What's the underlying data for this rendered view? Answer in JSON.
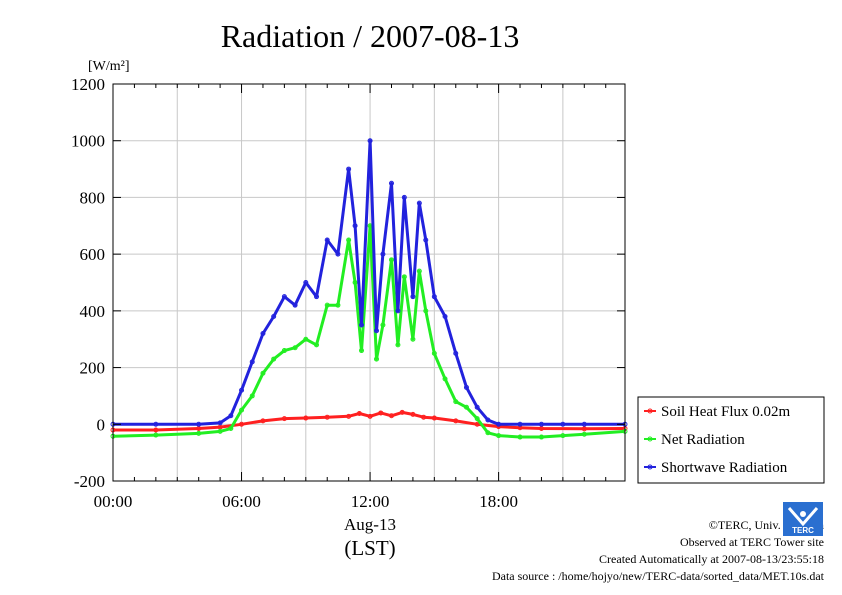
{
  "chart_data": {
    "type": "line",
    "title": "Radiation / 2007-08-13",
    "ylabel": "[W/m²]",
    "ylim": [
      -200,
      1200
    ],
    "yticks": [
      -200,
      0,
      200,
      400,
      600,
      800,
      1000,
      1200
    ],
    "xlim": [
      0,
      23.9
    ],
    "xticks": [
      {
        "value": 0,
        "label": "00:00"
      },
      {
        "value": 6,
        "label": "06:00"
      },
      {
        "value": 12,
        "label": "12:00"
      },
      {
        "value": 18,
        "label": "18:00"
      }
    ],
    "date_label": "Aug-13",
    "timezone_label": "(LST)",
    "grid": true,
    "legend_position": "right",
    "series": [
      {
        "name": "Soil Heat Flux 0.02m",
        "color": "#ff2020",
        "x": [
          0,
          2,
          4,
          5,
          6,
          7,
          8,
          9,
          10,
          11,
          11.5,
          12,
          12.5,
          13,
          13.5,
          14,
          14.5,
          15,
          16,
          17,
          18,
          19,
          20,
          22,
          23.9
        ],
        "values": [
          -20,
          -20,
          -15,
          -10,
          0,
          12,
          20,
          22,
          25,
          28,
          38,
          28,
          40,
          30,
          42,
          35,
          25,
          22,
          12,
          0,
          -8,
          -12,
          -15,
          -16,
          -15
        ]
      },
      {
        "name": "Net Radiation",
        "color": "#22ee22",
        "x": [
          0,
          2,
          4,
          5,
          5.5,
          6,
          6.5,
          7,
          7.5,
          8,
          8.5,
          9,
          9.5,
          10,
          10.5,
          11,
          11.3,
          11.6,
          12,
          12.3,
          12.6,
          13,
          13.3,
          13.6,
          14,
          14.3,
          14.6,
          15,
          15.5,
          16,
          16.5,
          17,
          17.5,
          18,
          19,
          20,
          21,
          22,
          23.9
        ],
        "values": [
          -42,
          -38,
          -32,
          -25,
          -15,
          50,
          100,
          180,
          230,
          260,
          270,
          300,
          280,
          420,
          420,
          650,
          500,
          260,
          700,
          230,
          350,
          580,
          280,
          520,
          300,
          540,
          400,
          250,
          160,
          80,
          60,
          20,
          -30,
          -40,
          -45,
          -45,
          -40,
          -35,
          -25
        ]
      },
      {
        "name": "Shortwave Radiation",
        "color": "#2222dd",
        "x": [
          0,
          2,
          4,
          5,
          5.5,
          6,
          6.5,
          7,
          7.5,
          8,
          8.5,
          9,
          9.5,
          10,
          10.5,
          11,
          11.3,
          11.6,
          12,
          12.3,
          12.6,
          13,
          13.3,
          13.6,
          14,
          14.3,
          14.6,
          15,
          15.5,
          16,
          16.5,
          17,
          17.5,
          18,
          19,
          20,
          21,
          22,
          23.9
        ],
        "values": [
          0,
          0,
          0,
          5,
          30,
          120,
          220,
          320,
          380,
          450,
          420,
          500,
          450,
          650,
          600,
          900,
          700,
          350,
          1000,
          330,
          600,
          850,
          400,
          800,
          450,
          780,
          650,
          450,
          380,
          250,
          130,
          60,
          15,
          0,
          0,
          0,
          0,
          0,
          0
        ]
      }
    ]
  },
  "credits": {
    "copyright": "©TERC, Univ. Tsukuba",
    "observed": "Observed at TERC Tower site",
    "created": "Created Automatically at 2007-08-13/23:55:18",
    "source": "Data source : /home/hojyo/new/TERC-data/sorted_data/MET.10s.dat",
    "logo_text": "TERC"
  }
}
